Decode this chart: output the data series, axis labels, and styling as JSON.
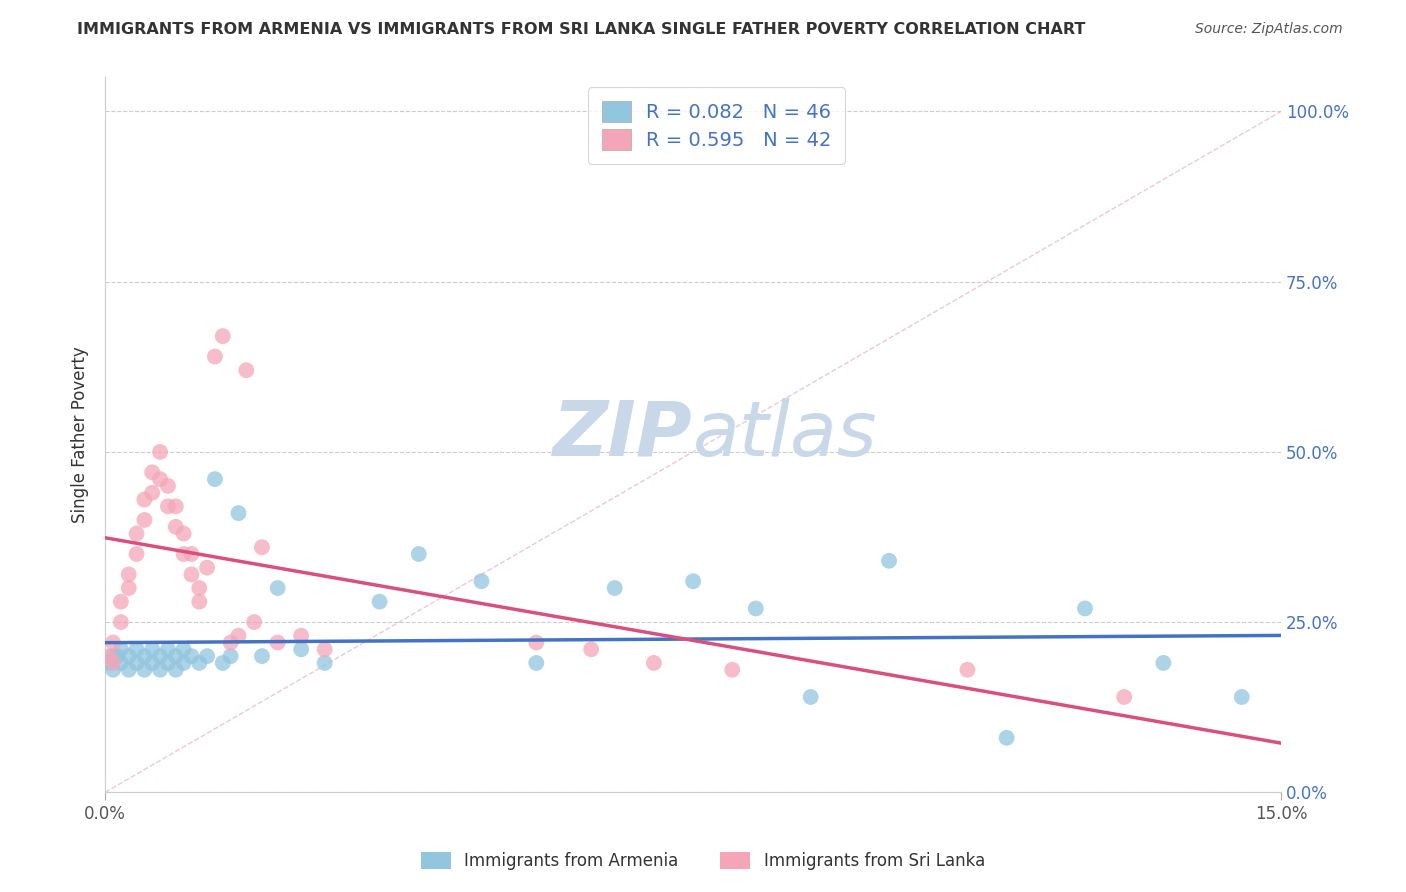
{
  "title": "IMMIGRANTS FROM ARMENIA VS IMMIGRANTS FROM SRI LANKA SINGLE FATHER POVERTY CORRELATION CHART",
  "source": "Source: ZipAtlas.com",
  "ylabel": "Single Father Poverty",
  "legend_label1": "Immigrants from Armenia",
  "legend_label2": "Immigrants from Sri Lanka",
  "R1": 0.082,
  "N1": 46,
  "R2": 0.595,
  "N2": 42,
  "xlim": [
    0.0,
    0.15
  ],
  "ylim": [
    0.0,
    1.05
  ],
  "ytick_vals": [
    0.0,
    0.25,
    0.5,
    0.75,
    1.0
  ],
  "color_armenia": "#92C5DE",
  "color_srilanka": "#F4A6B8",
  "line_color_armenia": "#4472C4",
  "line_color_srilanka": "#D94F7E",
  "watermark_zip": "ZIP",
  "watermark_atlas": "atlas",
  "watermark_color": "#C8D8E8",
  "armenia_x": [
    0.0005,
    0.001,
    0.001,
    0.0015,
    0.002,
    0.002,
    0.003,
    0.003,
    0.004,
    0.004,
    0.005,
    0.005,
    0.006,
    0.006,
    0.007,
    0.007,
    0.008,
    0.008,
    0.009,
    0.009,
    0.01,
    0.01,
    0.011,
    0.012,
    0.013,
    0.014,
    0.015,
    0.016,
    0.017,
    0.02,
    0.022,
    0.025,
    0.028,
    0.035,
    0.04,
    0.048,
    0.055,
    0.065,
    0.075,
    0.083,
    0.09,
    0.1,
    0.115,
    0.125,
    0.135,
    0.145
  ],
  "armenia_y": [
    0.19,
    0.2,
    0.18,
    0.2,
    0.19,
    0.21,
    0.2,
    0.18,
    0.19,
    0.21,
    0.2,
    0.18,
    0.19,
    0.21,
    0.2,
    0.18,
    0.19,
    0.21,
    0.2,
    0.18,
    0.19,
    0.21,
    0.2,
    0.19,
    0.2,
    0.46,
    0.19,
    0.2,
    0.41,
    0.2,
    0.3,
    0.21,
    0.19,
    0.28,
    0.35,
    0.31,
    0.19,
    0.3,
    0.31,
    0.27,
    0.14,
    0.34,
    0.08,
    0.27,
    0.19,
    0.14
  ],
  "srilanka_x": [
    0.0005,
    0.001,
    0.001,
    0.002,
    0.002,
    0.003,
    0.003,
    0.004,
    0.004,
    0.005,
    0.005,
    0.006,
    0.006,
    0.007,
    0.007,
    0.008,
    0.008,
    0.009,
    0.009,
    0.01,
    0.01,
    0.011,
    0.011,
    0.012,
    0.012,
    0.013,
    0.014,
    0.015,
    0.016,
    0.017,
    0.018,
    0.019,
    0.02,
    0.022,
    0.025,
    0.028,
    0.055,
    0.062,
    0.07,
    0.08,
    0.11,
    0.13
  ],
  "srilanka_y": [
    0.2,
    0.22,
    0.19,
    0.28,
    0.25,
    0.32,
    0.3,
    0.38,
    0.35,
    0.43,
    0.4,
    0.47,
    0.44,
    0.5,
    0.46,
    0.45,
    0.42,
    0.42,
    0.39,
    0.38,
    0.35,
    0.35,
    0.32,
    0.3,
    0.28,
    0.33,
    0.64,
    0.67,
    0.22,
    0.23,
    0.62,
    0.25,
    0.36,
    0.22,
    0.23,
    0.21,
    0.22,
    0.21,
    0.19,
    0.18,
    0.18,
    0.14
  ]
}
